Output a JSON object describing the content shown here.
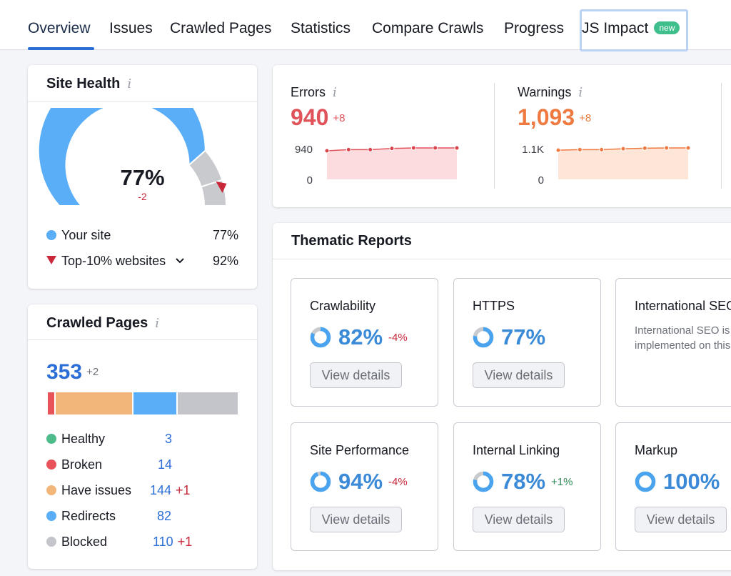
{
  "tabs": [
    {
      "label": "Overview",
      "active": true
    },
    {
      "label": "Issues"
    },
    {
      "label": "Crawled Pages"
    },
    {
      "label": "Statistics"
    },
    {
      "label": "Compare Crawls"
    },
    {
      "label": "Progress"
    },
    {
      "label": "JS Impact",
      "badge": "new"
    }
  ],
  "site_health": {
    "title": "Site Health",
    "info": "i",
    "percent": "77%",
    "gauge_value": 0.77,
    "top10_value": 0.92,
    "delta": "-2",
    "legend": [
      {
        "label": "Your site",
        "value": "77%",
        "color": "#5aaef7"
      },
      {
        "label": "Top-10% websites",
        "value": "92%",
        "color": "#c8283a"
      }
    ]
  },
  "crawled_pages": {
    "title": "Crawled Pages",
    "info": "i",
    "total": "353",
    "total_delta": "+2",
    "items": [
      {
        "label": "Healthy",
        "value": "3",
        "delta": "",
        "count": 3,
        "color": "#4dbb8a"
      },
      {
        "label": "Broken",
        "value": "14",
        "delta": "",
        "count": 14,
        "color": "#e8535a"
      },
      {
        "label": "Have issues",
        "value": "144",
        "delta": "+1",
        "count": 144,
        "color": "#f2b57a"
      },
      {
        "label": "Redirects",
        "value": "82",
        "delta": "",
        "count": 82,
        "color": "#5aaef7"
      },
      {
        "label": "Blocked",
        "value": "110",
        "delta": "+1",
        "count": 110,
        "color": "#c3c5cb"
      }
    ]
  },
  "errors": {
    "label": "Errors",
    "info": "i",
    "value": "940",
    "delta": "+8",
    "color": "#e0535a",
    "y_top_label": "940",
    "y_bottom_label": "0",
    "trend": [
      930,
      934,
      934,
      938,
      940,
      940,
      940
    ]
  },
  "warnings": {
    "label": "Warnings",
    "info": "i",
    "value": "1,093",
    "delta": "+8",
    "color": "#ee7a42",
    "y_top_label": "1.1K",
    "y_bottom_label": "0",
    "trend": [
      1085,
      1087,
      1087,
      1090,
      1092,
      1093,
      1093
    ]
  },
  "thematic": {
    "title": "Thematic Reports",
    "button_label": "View details",
    "reports": [
      {
        "name": "Crawlability",
        "percent": "82%",
        "value": 0.82,
        "delta": "-4%",
        "delta_type": "neg"
      },
      {
        "name": "HTTPS",
        "percent": "77%",
        "value": 0.77,
        "delta": "",
        "delta_type": ""
      },
      {
        "name": "International SEO",
        "description": "International SEO is not implemented on this site."
      },
      {
        "name": "Site Performance",
        "percent": "94%",
        "value": 0.94,
        "delta": "-4%",
        "delta_type": "neg"
      },
      {
        "name": "Internal Linking",
        "percent": "78%",
        "value": 0.78,
        "delta": "+1%",
        "delta_type": "pos"
      },
      {
        "name": "Markup",
        "percent": "100%",
        "value": 1.0,
        "delta": "",
        "delta_type": ""
      }
    ]
  }
}
